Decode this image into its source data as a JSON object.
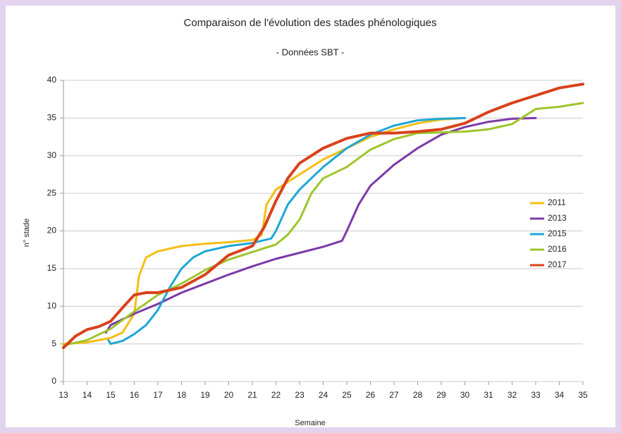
{
  "chart_data": {
    "type": "line",
    "title": "Comparaison de l'évolution des stades phénologiques",
    "subtitle": "- Données SBT -",
    "x_label": "Semaine",
    "y_label": "n° stade",
    "xlim": [
      13,
      35
    ],
    "xticks": [
      13,
      14,
      15,
      16,
      17,
      18,
      19,
      20,
      21,
      22,
      23,
      24,
      25,
      26,
      27,
      28,
      29,
      30,
      31,
      32,
      33,
      34,
      35
    ],
    "ylim": [
      0,
      40
    ],
    "yticks": [
      0,
      5,
      10,
      15,
      20,
      25,
      30,
      35,
      40
    ],
    "grid": true,
    "legend": "right",
    "series": [
      {
        "name": "2011",
        "color": "#f5be14",
        "x": [
          13,
          14,
          15,
          15.5,
          16,
          16.2,
          16.5,
          17,
          18,
          19,
          20,
          21,
          21.4,
          21.6,
          22,
          23,
          24,
          25,
          26,
          27,
          28,
          29,
          30
        ],
        "values": [
          5,
          5.2,
          5.8,
          6.5,
          9,
          14,
          16.5,
          17.3,
          18,
          18.3,
          18.5,
          18.8,
          19.5,
          23.5,
          25.5,
          27.5,
          29.5,
          31,
          32.5,
          33.5,
          34.3,
          34.8,
          35
        ]
      },
      {
        "name": "2013",
        "color": "#7b3aa8",
        "x": [
          14.8,
          15,
          16,
          17,
          18,
          19,
          20,
          21,
          22,
          23,
          24,
          24.8,
          25,
          25.5,
          26,
          27,
          28,
          29,
          30,
          31,
          32,
          33
        ],
        "values": [
          6.5,
          7.5,
          9,
          10.3,
          11.8,
          13,
          14.2,
          15.3,
          16.3,
          17.1,
          17.9,
          18.7,
          20,
          23.5,
          26,
          28.8,
          31,
          32.8,
          33.8,
          34.5,
          34.9,
          35
        ]
      },
      {
        "name": "2015",
        "color": "#1ea6d6",
        "x": [
          14.9,
          15,
          15.5,
          16,
          16.5,
          17,
          17.5,
          18,
          18.5,
          19,
          20,
          21,
          21.8,
          22,
          22.5,
          23,
          24,
          25,
          26,
          27,
          28,
          29,
          30
        ],
        "values": [
          5.5,
          5,
          5.4,
          6.3,
          7.5,
          9.5,
          12.5,
          15,
          16.5,
          17.3,
          18,
          18.4,
          19,
          20,
          23.5,
          25.5,
          28.5,
          31,
          32.8,
          34,
          34.7,
          34.9,
          35
        ]
      },
      {
        "name": "2016",
        "color": "#9dc52c",
        "x": [
          13,
          14,
          15,
          16,
          17,
          18,
          19,
          20,
          21,
          22,
          22.5,
          23,
          23.5,
          24,
          25,
          26,
          27,
          28,
          29,
          30,
          31,
          32,
          32.5,
          33,
          34,
          35
        ],
        "values": [
          4.8,
          5.5,
          7,
          9.3,
          11.5,
          13,
          14.8,
          16.2,
          17.2,
          18.2,
          19.5,
          21.5,
          25,
          27,
          28.5,
          30.8,
          32.2,
          33,
          33.1,
          33.2,
          33.5,
          34.2,
          35.2,
          36.2,
          36.5,
          37
        ]
      },
      {
        "name": "2017",
        "color": "#d8421b",
        "x": [
          13,
          13.5,
          14,
          14.5,
          15,
          15.5,
          16,
          16.5,
          17,
          18,
          19,
          19.5,
          20,
          21,
          21.5,
          22,
          22.5,
          23,
          24,
          25,
          26,
          27,
          28,
          29,
          30,
          31,
          32,
          33,
          34,
          35
        ],
        "values": [
          4.5,
          6,
          6.9,
          7.3,
          8,
          9.8,
          11.5,
          11.8,
          11.8,
          12.5,
          14.2,
          15.5,
          16.8,
          18,
          20.5,
          24,
          27,
          29,
          31,
          32.3,
          33,
          33,
          33.2,
          33.5,
          34.3,
          35.8,
          37,
          38,
          39,
          39.5
        ]
      }
    ]
  }
}
